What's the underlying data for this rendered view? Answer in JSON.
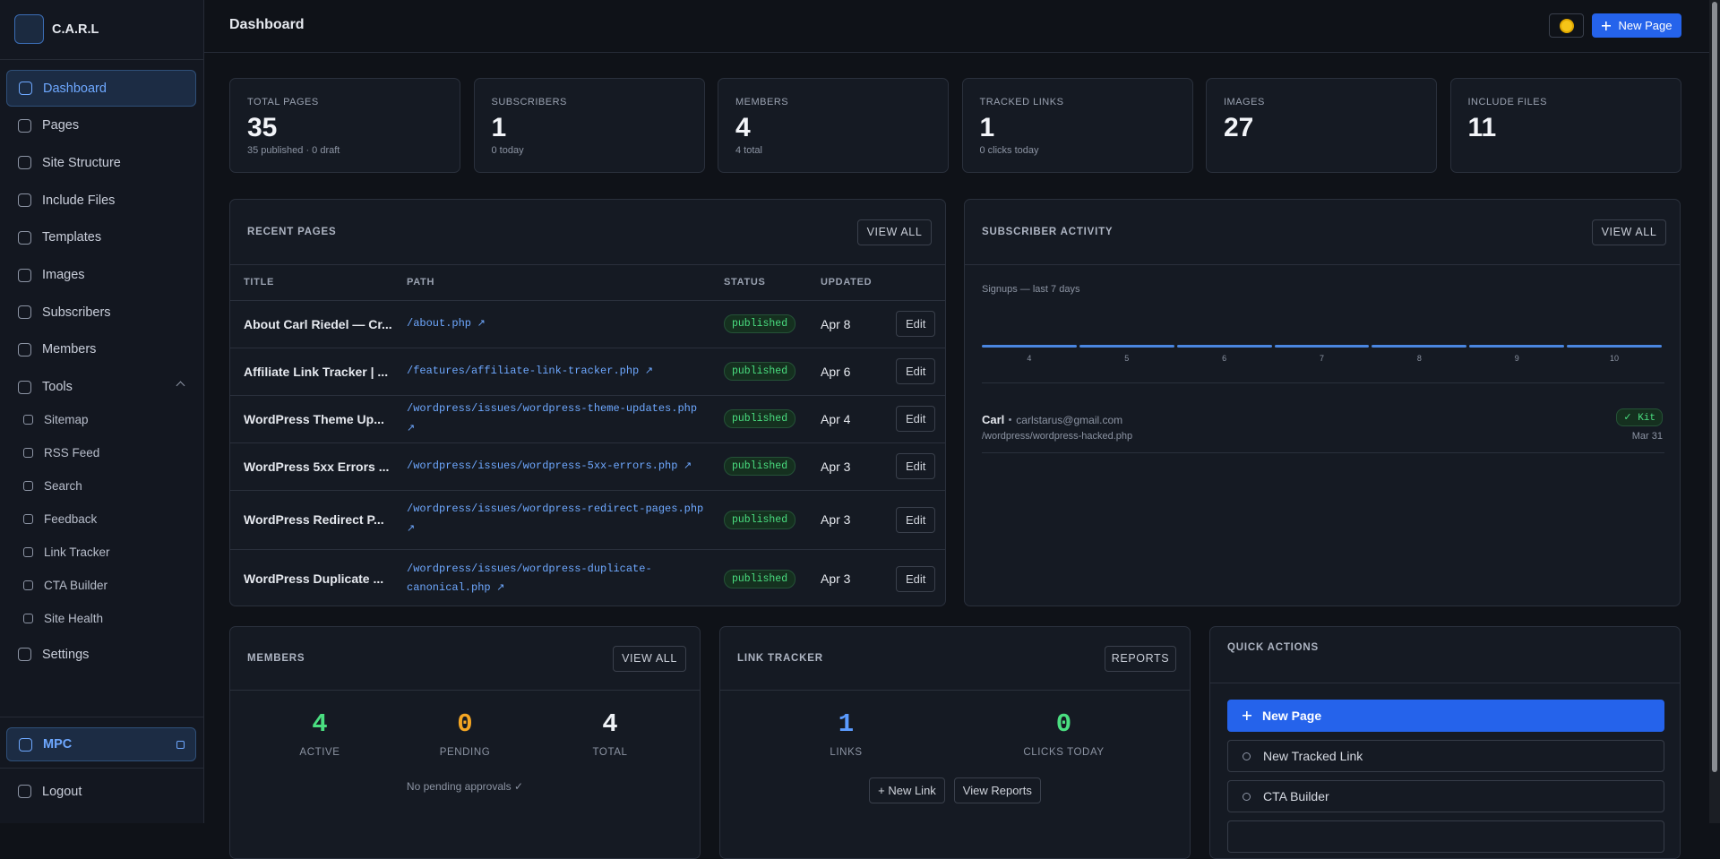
{
  "sidebar": {
    "brand": "C.A.R.L",
    "nav": [
      "Dashboard",
      "Pages",
      "Site Structure",
      "Include Files",
      "Templates",
      "Images",
      "Subscribers",
      "Members",
      "Tools"
    ],
    "tools": [
      "Sitemap",
      "RSS Feed",
      "Search",
      "Feedback",
      "Link Tracker",
      "CTA Builder",
      "Site Health"
    ],
    "settings": "Settings",
    "mpc": "MPC",
    "logout": "Logout"
  },
  "header": {
    "title": "Dashboard",
    "new_page": "New Page"
  },
  "stats": [
    {
      "label": "TOTAL PAGES",
      "value": 35,
      "sub": "35 published · 0 draft"
    },
    {
      "label": "SUBSCRIBERS",
      "value": 1,
      "sub": "0 today"
    },
    {
      "label": "MEMBERS",
      "value": 4,
      "sub": "4 total"
    },
    {
      "label": "TRACKED LINKS",
      "value": 1,
      "sub": "0 clicks today"
    },
    {
      "label": "IMAGES",
      "value": 27
    },
    {
      "label": "INCLUDE FILES",
      "value": 11
    }
  ],
  "recent_pages": {
    "title": "RECENT PAGES",
    "view_all": "VIEW ALL",
    "columns": [
      "TITLE",
      "PATH",
      "STATUS",
      "UPDATED"
    ],
    "rows": [
      {
        "title": "About Carl Riedel — Cr...",
        "path": "/about.php",
        "status": "published",
        "updated": "Apr 8",
        "action": "Edit"
      },
      {
        "title": "Affiliate Link Tracker | ...",
        "path": "/features/affiliate-link-tracker.php",
        "status": "published",
        "updated": "Apr 6",
        "action": "Edit"
      },
      {
        "title": "WordPress Theme Up...",
        "path": "/wordpress/issues/wordpress-theme-updates.php",
        "status": "published",
        "updated": "Apr 4",
        "action": "Edit"
      },
      {
        "title": "WordPress 5xx Errors ...",
        "path": "/wordpress/issues/wordpress-5xx-errors.php",
        "status": "published",
        "updated": "Apr 3",
        "action": "Edit"
      },
      {
        "title": "WordPress Redirect P...",
        "path": "/wordpress/issues/wordpress-redirect-pages.php",
        "status": "published",
        "updated": "Apr 3",
        "action": "Edit"
      },
      {
        "title": "WordPress Duplicate ...",
        "path": "/wordpress/issues/wordpress-duplicate-canonical.php",
        "status": "published",
        "updated": "Apr 3",
        "action": "Edit"
      }
    ]
  },
  "subscriber_activity": {
    "title": "SUBSCRIBER ACTIVITY",
    "view_all": "VIEW ALL",
    "chart_label": "Signups — last 7 days",
    "days": [
      4,
      5,
      6,
      7,
      8,
      9,
      10
    ],
    "signups": [
      0,
      0,
      0,
      0,
      0,
      0,
      0
    ],
    "subscribers": [
      {
        "name": "Carl",
        "email": "carlstarus@gmail.com",
        "path": "/wordpress/wordpress-hacked.php",
        "tag": "✓ Kit",
        "date": "Mar 31"
      }
    ]
  },
  "members": {
    "title": "MEMBERS",
    "view_all": "VIEW ALL",
    "counts": [
      {
        "value": 4,
        "label": "ACTIVE"
      },
      {
        "value": 0,
        "label": "PENDING"
      },
      {
        "value": 4,
        "label": "TOTAL"
      }
    ],
    "note": "No pending approvals ✓"
  },
  "link_tracker": {
    "title": "LINK TRACKER",
    "reports": "REPORTS",
    "counts": [
      {
        "value": 1,
        "label": "LINKS"
      },
      {
        "value": 0,
        "label": "CLICKS TODAY"
      }
    ],
    "actions": [
      "+ New Link",
      "View Reports"
    ]
  },
  "quick_actions": {
    "title": "QUICK ACTIONS",
    "actions": [
      "New Page",
      "New Tracked Link",
      "CTA Builder"
    ]
  }
}
